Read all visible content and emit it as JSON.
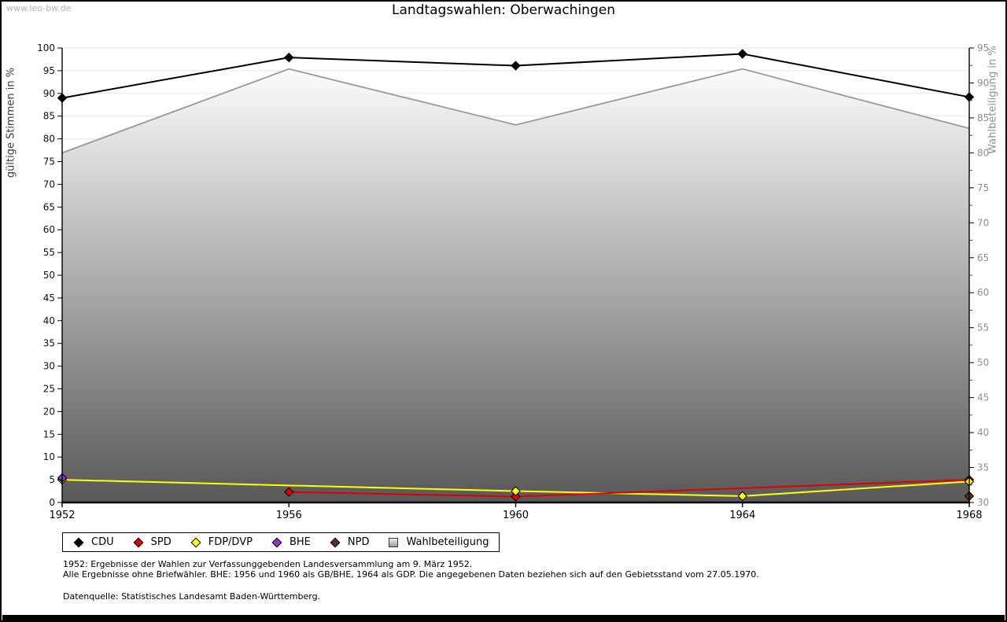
{
  "watermark": "www.leo-bw.de",
  "title": "Landtagswahlen: Oberwachingen",
  "footnotes": {
    "line1": "1952: Ergebnisse der Wahlen zur Verfassunggebenden Landesversammlung am 9. März 1952.",
    "line2": "Alle Ergebnisse ohne Briefwähler. BHE: 1956 und 1960 als GB/BHE, 1964 als GDP. Die angegebenen Daten beziehen sich auf den Gebietsstand vom 27.05.1970.",
    "source": "Datenquelle: Statistisches Landesamt Baden-Württemberg."
  },
  "colors": {
    "grid": "#e6e6e6",
    "axis": "#000000",
    "right_axis_text": "#8f8f8f",
    "area_outline": "#999999",
    "area_fill_top": "#fcfcfc",
    "area_fill_bottom": "#585858"
  },
  "chart_data": {
    "type": "line",
    "title": "Landtagswahlen: Oberwachingen",
    "x": [
      "1952",
      "1956",
      "1960",
      "1964",
      "1968"
    ],
    "left_axis": {
      "label": "gültige Stimmen in %",
      "range": [
        0,
        100
      ],
      "tick_step": 5
    },
    "right_axis": {
      "label": "Wahlbeteiligung in %",
      "range": [
        30,
        95
      ],
      "tick_step": 5,
      "minor_tick_step": 2.5
    },
    "grid": true,
    "legend_position": "bottom",
    "series": [
      {
        "name": "CDU",
        "axis": "left",
        "type": "line",
        "marker": "diamond",
        "color": "#000000",
        "values": [
          89.0,
          97.9,
          96.1,
          98.7,
          89.2
        ]
      },
      {
        "name": "SPD",
        "axis": "left",
        "type": "line",
        "marker": "diamond",
        "color": "#dd0000",
        "values": [
          null,
          2.3,
          1.3,
          null,
          5.0
        ]
      },
      {
        "name": "FDP/DVP",
        "axis": "left",
        "type": "line",
        "marker": "diamond",
        "color": "#ffff00",
        "values": [
          5.0,
          null,
          2.5,
          1.4,
          4.6
        ]
      },
      {
        "name": "BHE",
        "axis": "left",
        "type": "line",
        "marker": "diamond",
        "color": "#9933cc",
        "values": [
          5.4,
          null,
          null,
          null,
          null
        ]
      },
      {
        "name": "NPD",
        "axis": "left",
        "type": "line",
        "marker": "diamond",
        "color": "#5c3317",
        "values": [
          null,
          null,
          null,
          null,
          1.4
        ]
      },
      {
        "name": "Wahlbeteiligung",
        "axis": "right",
        "type": "area",
        "marker": "square-gradient",
        "color": "#999999",
        "values": [
          80.0,
          92.0,
          84.0,
          92.0,
          83.5
        ]
      }
    ]
  }
}
